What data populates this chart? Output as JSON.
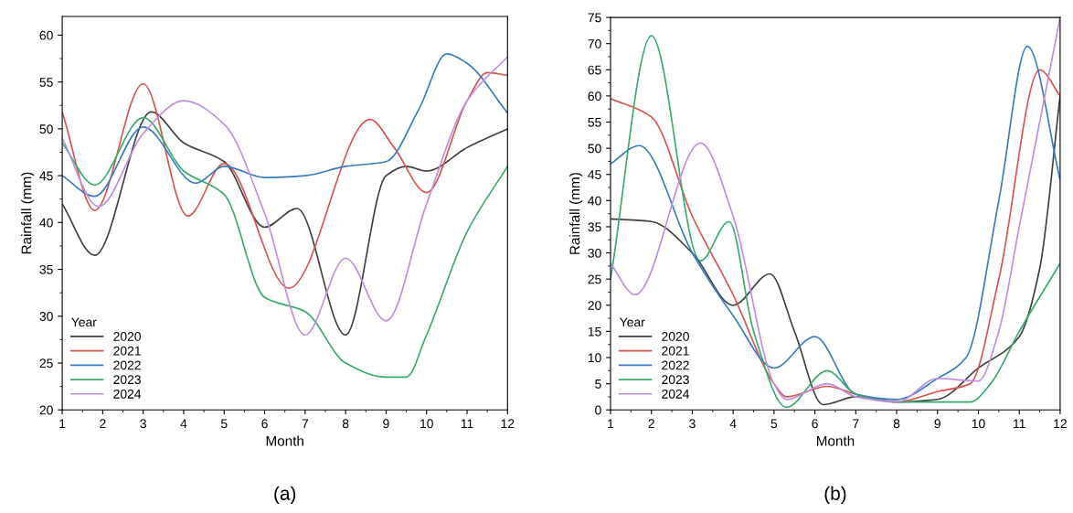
{
  "chart_data": [
    {
      "type": "line",
      "xlabel": "Month",
      "ylabel": "Rainfall (mm)",
      "legend_title": "Year",
      "legend": "bottom left",
      "grid": false,
      "marker": "none",
      "line_style": "solid",
      "xlim": [
        1,
        12
      ],
      "xticks": [
        1,
        2,
        3,
        4,
        5,
        6,
        7,
        8,
        9,
        10,
        11,
        12
      ],
      "ylim": [
        20,
        62
      ],
      "yticks": [
        20,
        25,
        30,
        35,
        40,
        45,
        50,
        55,
        60
      ],
      "annotations": [
        "(a)"
      ],
      "series": [
        {
          "name": "2020",
          "color": "#404040",
          "x": [
            1,
            1.8,
            3.2,
            4,
            5,
            6,
            6.8,
            8,
            9,
            9.5,
            10,
            11,
            12
          ],
          "values": [
            42,
            36.5,
            51.8,
            48.5,
            46.5,
            39.5,
            41.5,
            28,
            45,
            46,
            45.5,
            48,
            50
          ]
        },
        {
          "name": "2021",
          "color": "#d9534f",
          "x": [
            1,
            1.8,
            3,
            4.1,
            5,
            6.6,
            8.6,
            9.2,
            10,
            11,
            11.5,
            12
          ],
          "values": [
            51.8,
            41.3,
            54.8,
            40.7,
            46.3,
            33,
            51,
            48,
            43.2,
            53,
            56,
            55.7
          ]
        },
        {
          "name": "2022",
          "color": "#3a7bbf",
          "x": [
            1,
            1.8,
            3,
            4.3,
            5,
            6,
            7,
            8,
            9,
            9.8,
            10.5,
            11,
            12
          ],
          "values": [
            45,
            42.8,
            50.2,
            44.2,
            46,
            44.8,
            45,
            46,
            46.5,
            52,
            58,
            57,
            51.7
          ]
        },
        {
          "name": "2023",
          "color": "#3aaa6a",
          "x": [
            1,
            1.8,
            3,
            4,
            5,
            6,
            7,
            8,
            9,
            9.5,
            10,
            11,
            12
          ],
          "values": [
            48.5,
            44,
            51.2,
            45.5,
            43,
            32,
            30.5,
            25,
            23.5,
            23.5,
            28,
            39,
            46
          ]
        },
        {
          "name": "2024",
          "color": "#c08ee0",
          "x": [
            1,
            1.9,
            3,
            4,
            5,
            6,
            7,
            8,
            9,
            10,
            11,
            12
          ],
          "values": [
            49,
            41.7,
            49.5,
            53,
            50.5,
            41,
            28,
            36.2,
            29.5,
            42,
            53,
            57.7
          ]
        }
      ]
    },
    {
      "type": "line",
      "xlabel": "Month",
      "ylabel": "Rainfall (mm)",
      "legend_title": "Year",
      "legend": "bottom left",
      "grid": false,
      "marker": "none",
      "line_style": "solid",
      "xlim": [
        1,
        12
      ],
      "xticks": [
        1,
        2,
        3,
        4,
        5,
        6,
        7,
        8,
        9,
        10,
        11,
        12
      ],
      "ylim": [
        0,
        75
      ],
      "yticks": [
        0,
        5,
        10,
        15,
        20,
        25,
        30,
        35,
        40,
        45,
        50,
        55,
        60,
        65,
        70,
        75
      ],
      "annotations": [
        "(b)"
      ],
      "series": [
        {
          "name": "2020",
          "color": "#404040",
          "x": [
            1,
            2,
            3,
            4,
            4.9,
            5.5,
            6.2,
            7,
            8,
            9,
            10,
            11,
            11.5,
            12
          ],
          "values": [
            36.5,
            36,
            30,
            20,
            26,
            15,
            1,
            2.5,
            1.5,
            2,
            8,
            14,
            27,
            60
          ]
        },
        {
          "name": "2021",
          "color": "#d9534f",
          "x": [
            1,
            2,
            3,
            4,
            5,
            5.3,
            6.3,
            7,
            8,
            9,
            9.8,
            10.5,
            11.5,
            12
          ],
          "values": [
            59.5,
            56,
            37,
            22,
            5,
            2.5,
            4.5,
            3,
            1.5,
            3.5,
            5,
            25,
            65,
            60
          ]
        },
        {
          "name": "2022",
          "color": "#3a7bbf",
          "x": [
            1,
            1.7,
            3,
            4,
            5,
            6,
            7,
            8,
            9,
            9.7,
            10.5,
            11.2,
            12
          ],
          "values": [
            47,
            50.5,
            30,
            18,
            8,
            14,
            3,
            2,
            6,
            10,
            40,
            69.5,
            44
          ]
        },
        {
          "name": "2023",
          "color": "#3aaa6a",
          "x": [
            1,
            2,
            3.2,
            3.9,
            4.5,
            5.3,
            6.3,
            7,
            8,
            9,
            9.8,
            10.3,
            11,
            12
          ],
          "values": [
            25,
            71.5,
            28.5,
            36,
            15,
            0.5,
            7.5,
            3,
            1.5,
            1.5,
            1.5,
            5,
            15,
            28
          ]
        },
        {
          "name": "2024",
          "color": "#c08ee0",
          "x": [
            1,
            1.6,
            3.2,
            4,
            5,
            5.3,
            6.3,
            7,
            8,
            9,
            10,
            10.5,
            11,
            12
          ],
          "values": [
            28,
            22,
            51,
            37,
            5,
            2,
            5,
            2.5,
            1.5,
            6,
            5.5,
            15,
            35,
            75
          ]
        }
      ]
    }
  ]
}
